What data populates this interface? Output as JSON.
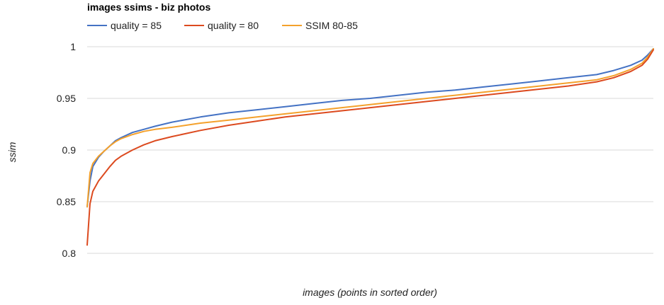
{
  "chart_data": {
    "type": "line",
    "title": "images ssims - biz photos",
    "xlabel": "images (points in sorted order)",
    "ylabel": "ssim",
    "ylim": [
      0.8,
      1.0
    ],
    "yticks": [
      0.8,
      0.85,
      0.9,
      0.95,
      1
    ],
    "ytick_labels": [
      "0.8",
      "0.85",
      "0.9",
      "0.95",
      "1"
    ],
    "grid": true,
    "legend_position": "top-left",
    "x": [
      0,
      0.005,
      0.01,
      0.02,
      0.03,
      0.04,
      0.05,
      0.06,
      0.08,
      0.1,
      0.12,
      0.15,
      0.2,
      0.25,
      0.3,
      0.35,
      0.4,
      0.45,
      0.5,
      0.55,
      0.6,
      0.65,
      0.7,
      0.75,
      0.8,
      0.85,
      0.9,
      0.93,
      0.96,
      0.98,
      0.99,
      1.0
    ],
    "series": [
      {
        "name": "quality = 85",
        "color": "#4472c4",
        "values": [
          0.845,
          0.87,
          0.884,
          0.893,
          0.899,
          0.904,
          0.909,
          0.912,
          0.917,
          0.92,
          0.923,
          0.927,
          0.932,
          0.936,
          0.939,
          0.942,
          0.945,
          0.948,
          0.95,
          0.953,
          0.956,
          0.958,
          0.961,
          0.964,
          0.967,
          0.97,
          0.973,
          0.977,
          0.982,
          0.987,
          0.992,
          0.998
        ]
      },
      {
        "name": "quality = 80",
        "color": "#dc4a1f",
        "values": [
          0.808,
          0.848,
          0.86,
          0.87,
          0.877,
          0.884,
          0.89,
          0.894,
          0.9,
          0.905,
          0.909,
          0.913,
          0.919,
          0.924,
          0.928,
          0.932,
          0.935,
          0.938,
          0.941,
          0.944,
          0.947,
          0.95,
          0.953,
          0.956,
          0.959,
          0.962,
          0.966,
          0.97,
          0.976,
          0.982,
          0.988,
          0.997
        ]
      },
      {
        "name": "SSIM 80-85",
        "color": "#f4a12c",
        "values": [
          0.845,
          0.878,
          0.887,
          0.894,
          0.899,
          0.904,
          0.908,
          0.911,
          0.915,
          0.918,
          0.92,
          0.922,
          0.926,
          0.929,
          0.932,
          0.935,
          0.938,
          0.941,
          0.944,
          0.947,
          0.95,
          0.953,
          0.956,
          0.959,
          0.962,
          0.965,
          0.968,
          0.972,
          0.978,
          0.984,
          0.99,
          0.998
        ]
      }
    ]
  }
}
